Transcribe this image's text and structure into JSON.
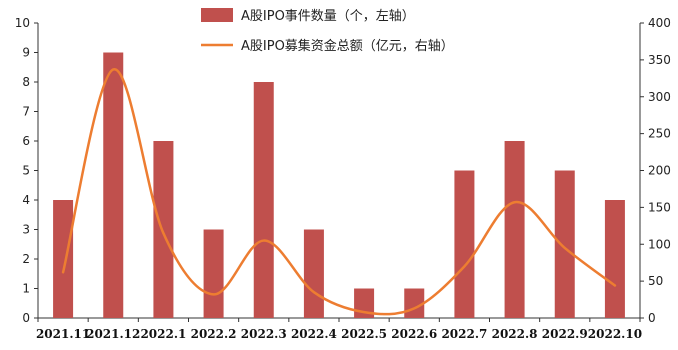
{
  "chart_data": {
    "type": "bar",
    "categories": [
      "2021.11",
      "2021.12",
      "2022.1",
      "2022.2",
      "2022.3",
      "2022.4",
      "2022.5",
      "2022.6",
      "2022.7",
      "2022.8",
      "2022.9",
      "2022.10"
    ],
    "series": [
      {
        "name": "A股IPO事件数量（个，左轴）",
        "type": "bar",
        "axis": "left",
        "color": "#C0504D",
        "values": [
          4,
          9,
          6,
          3,
          8,
          3,
          1,
          1,
          5,
          6,
          5,
          4
        ]
      },
      {
        "name": "A股IPO募集资金总额（亿元，右轴）",
        "type": "line",
        "axis": "right",
        "color": "#ED7D31",
        "smooth": true,
        "values": [
          62,
          337,
          115,
          32,
          105,
          35,
          8,
          13,
          70,
          157,
          95,
          44
        ]
      }
    ],
    "ylim_left": [
      0,
      10
    ],
    "yticks_left": [
      "0",
      "1",
      "2",
      "3",
      "4",
      "5",
      "6",
      "7",
      "8",
      "9",
      "10"
    ],
    "ylim_right": [
      0,
      400
    ],
    "yticks_right": [
      "0",
      "50",
      "100",
      "150",
      "200",
      "250",
      "300",
      "350",
      "400"
    ],
    "grid": false,
    "legend_position": "top-center"
  }
}
